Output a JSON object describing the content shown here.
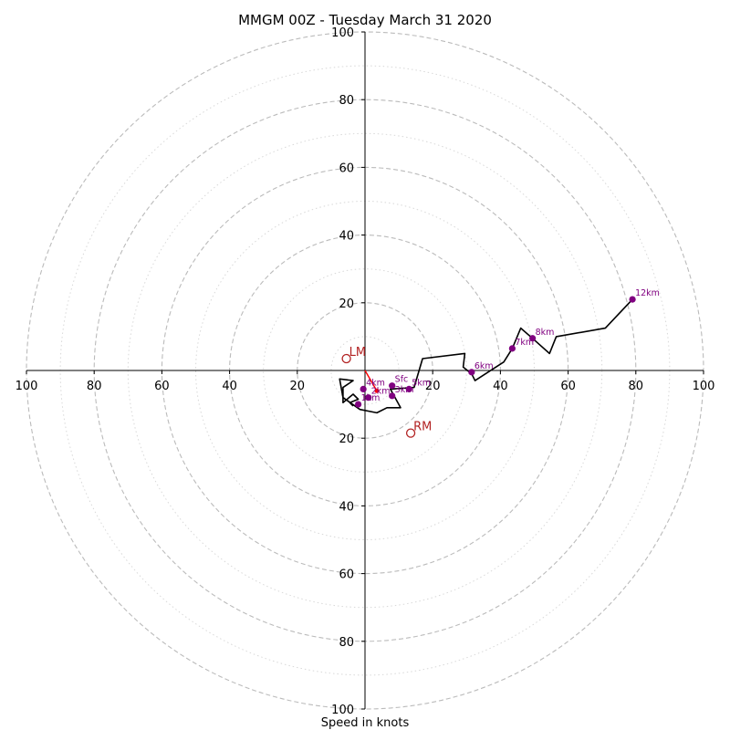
{
  "chart_data": {
    "type": "hodograph",
    "title": "MMGM 00Z - Tuesday March 31 2020",
    "xlabel": "Speed in knots",
    "units": "knots",
    "range": [
      -100,
      100
    ],
    "rings_major": [
      20,
      40,
      60,
      80,
      100
    ],
    "rings_minor": [
      10,
      30,
      50,
      70,
      90
    ],
    "x_ticks": [
      "100",
      "80",
      "60",
      "40",
      "20",
      "",
      "20",
      "40",
      "60",
      "80",
      "100"
    ],
    "y_ticks": [
      "100",
      "80",
      "60",
      "40",
      "20",
      "",
      "20",
      "40",
      "60",
      "80",
      "100"
    ],
    "grid": true,
    "colors": {
      "profile": "#000000",
      "heights": "#800080",
      "motion": "#b22222",
      "shear": "#ff0000",
      "major_ring": "#bbbbbb",
      "minor_ring": "#d8d8d8",
      "axes": "#000000"
    },
    "profile": [
      [
        -3.5,
        -10.5
      ],
      [
        -4.5,
        -9.5
      ],
      [
        -2.0,
        -8.5
      ],
      [
        -3.5,
        -7.0
      ],
      [
        -6.5,
        -9.5
      ],
      [
        -6.5,
        -5.0
      ],
      [
        -3.5,
        -3.0
      ],
      [
        -7.5,
        -2.5
      ],
      [
        -6.5,
        -8.0
      ],
      [
        -1.5,
        -11.5
      ],
      [
        3.5,
        -12.5
      ],
      [
        6.5,
        -11.0
      ],
      [
        10.5,
        -11.0
      ],
      [
        7.5,
        -5.5
      ],
      [
        14.5,
        -5.0
      ],
      [
        17.0,
        3.5
      ],
      [
        29.5,
        5.0
      ],
      [
        29.0,
        1.0
      ],
      [
        31.5,
        -1.0
      ],
      [
        32.5,
        -3.0
      ],
      [
        41.0,
        2.5
      ],
      [
        43.5,
        6.5
      ],
      [
        46.0,
        12.5
      ],
      [
        49.5,
        9.5
      ],
      [
        54.5,
        5.0
      ],
      [
        56.5,
        10.0
      ],
      [
        71.0,
        12.5
      ],
      [
        79.0,
        21.0
      ]
    ],
    "height_labels": [
      {
        "label": "Sfc",
        "u": 8.0,
        "v": -4.5
      },
      {
        "label": "1km",
        "u": -2.0,
        "v": -10.0
      },
      {
        "label": "2km",
        "u": 1.0,
        "v": -8.0
      },
      {
        "label": "3km",
        "u": 8.0,
        "v": -7.5
      },
      {
        "label": "4km",
        "u": -0.5,
        "v": -5.5
      },
      {
        "label": "5km",
        "u": 13.0,
        "v": -5.5
      },
      {
        "label": "6km",
        "u": 31.5,
        "v": -0.5
      },
      {
        "label": "7km",
        "u": 43.5,
        "v": 6.5
      },
      {
        "label": "8km",
        "u": 49.5,
        "v": 9.5
      },
      {
        "label": "12km",
        "u": 79.0,
        "v": 21.0
      }
    ],
    "storm_motion": [
      {
        "label": "LM",
        "u": -5.5,
        "v": 3.5
      },
      {
        "label": "RM",
        "u": 13.5,
        "v": -18.5
      }
    ],
    "shear_vector": [
      [
        0.0,
        0.0
      ],
      [
        3.5,
        -6.0
      ]
    ]
  }
}
